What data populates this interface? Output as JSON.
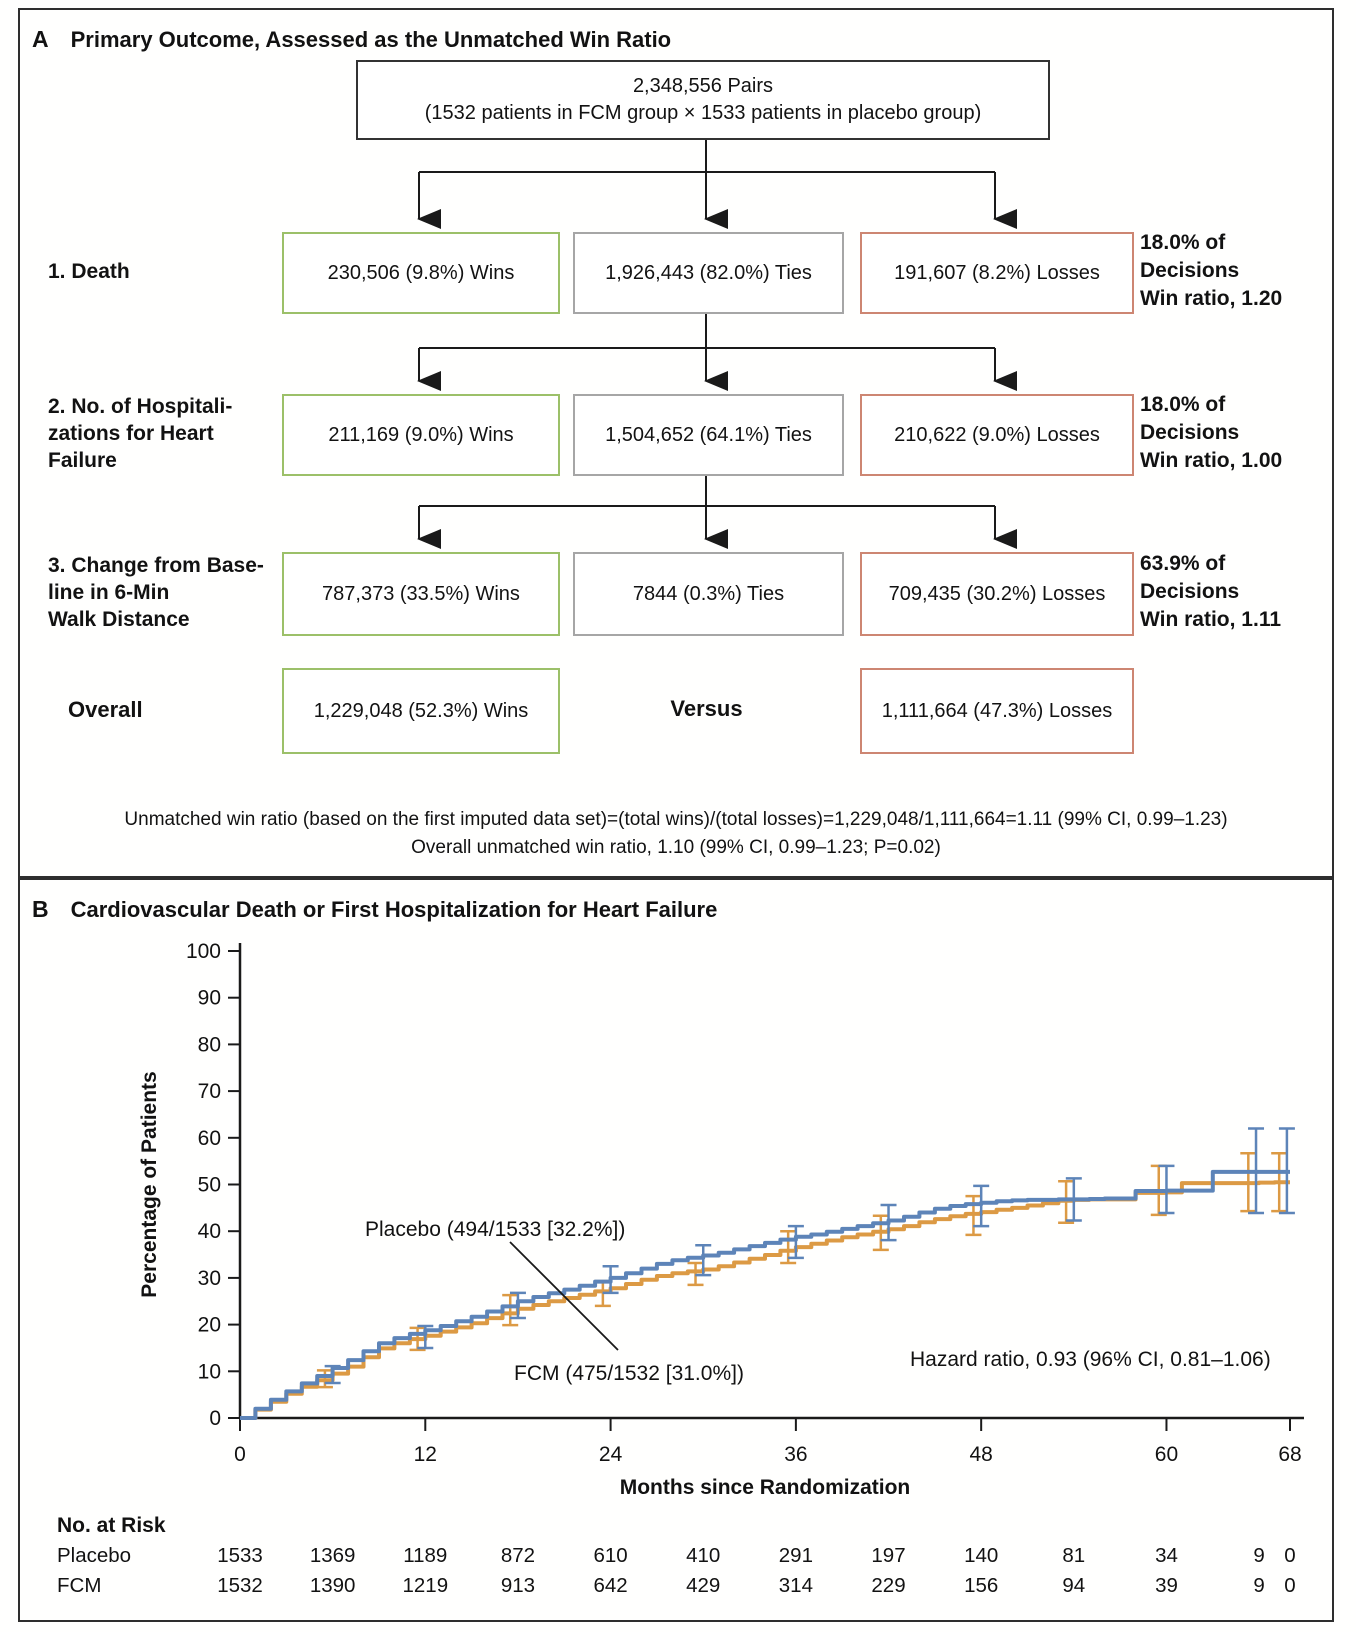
{
  "colors": {
    "wins_border": "#9cc069",
    "ties_border": "#a6a6a6",
    "losses_border": "#cd8672",
    "placebo_curve": "#5d84b8",
    "fcm_curve": "#dc9a44"
  },
  "panel_a": {
    "label": "A",
    "title": "Primary Outcome, Assessed as the Unmatched Win Ratio",
    "pairs_box": "2,348,556 Pairs\n(1532 patients in FCM group × 1533 patients in placebo group)",
    "rows": [
      {
        "label": "1. Death",
        "wins": "230,506 (9.8%) Wins",
        "ties": "1,926,443 (82.0%) Ties",
        "losses": "191,607 (8.2%) Losses",
        "note": "18.0% of Decisions\nWin ratio, 1.20"
      },
      {
        "label": "2. No. of Hospitali-\nzations for Heart\nFailure",
        "wins": "211,169 (9.0%) Wins",
        "ties": "1,504,652 (64.1%) Ties",
        "losses": "210,622 (9.0%) Losses",
        "note": "18.0% of Decisions\nWin ratio, 1.00"
      },
      {
        "label": "3. Change from Base-\nline in 6-Min\nWalk Distance",
        "wins": "787,373 (33.5%) Wins",
        "ties": "7844 (0.3%) Ties",
        "losses": "709,435 (30.2%) Losses",
        "note": "63.9% of Decisions\nWin ratio, 1.11"
      }
    ],
    "overall": {
      "label": "Overall",
      "wins": "1,229,048 (52.3%) Wins",
      "versus": "Versus",
      "losses": "1,111,664 (47.3%) Losses"
    },
    "footnote": "Unmatched win ratio (based on the first imputed data set)=(total wins)/(total losses)=1,229,048/1,111,664=1.11 (99% CI, 0.99–1.23)\nOverall unmatched win ratio, 1.10 (99% CI, 0.99–1.23; P=0.02)"
  },
  "panel_b": {
    "label": "B",
    "title": "Cardiovascular Death or First Hospitalization for Heart Failure"
  },
  "chart_data": {
    "type": "line",
    "subtype": "kaplan-meier-step",
    "title": "Cardiovascular Death or First Hospitalization for Heart Failure",
    "xlabel": "Months since Randomization",
    "ylabel": "Percentage of Patients",
    "xlim": [
      0,
      68
    ],
    "ylim": [
      0,
      100
    ],
    "xticks": [
      0,
      12,
      24,
      36,
      48,
      60,
      68
    ],
    "yticks": [
      0,
      10,
      20,
      30,
      40,
      50,
      60,
      70,
      80,
      90,
      100
    ],
    "annotation": "Hazard ratio, 0.93 (96% CI, 0.81–1.06)",
    "series": [
      {
        "name": "FCM",
        "label": "FCM (475/1532 [31.0%])",
        "color": "#dc9a44",
        "points": [
          [
            0,
            0
          ],
          [
            1,
            1.8
          ],
          [
            2,
            3.5
          ],
          [
            3,
            5.2
          ],
          [
            4,
            6.7
          ],
          [
            5,
            8.1
          ],
          [
            6,
            9.5
          ],
          [
            7,
            11.0
          ],
          [
            8,
            13.0
          ],
          [
            9,
            14.9
          ],
          [
            10,
            16.0
          ],
          [
            11,
            16.9
          ],
          [
            12,
            17.6
          ],
          [
            13,
            18.5
          ],
          [
            14,
            19.4
          ],
          [
            15,
            20.3
          ],
          [
            16,
            21.4
          ],
          [
            17,
            22.4
          ],
          [
            18,
            23.4
          ],
          [
            19,
            24.2
          ],
          [
            20,
            25.0
          ],
          [
            21,
            25.7
          ],
          [
            22,
            26.4
          ],
          [
            23,
            27.1
          ],
          [
            24,
            27.8
          ],
          [
            25,
            28.7
          ],
          [
            26,
            29.6
          ],
          [
            27,
            30.4
          ],
          [
            28,
            31.0
          ],
          [
            29,
            31.4
          ],
          [
            30,
            31.8
          ],
          [
            31,
            32.5
          ],
          [
            32,
            33.3
          ],
          [
            33,
            34.1
          ],
          [
            34,
            34.9
          ],
          [
            35,
            35.8
          ],
          [
            36,
            36.6
          ],
          [
            37,
            37.3
          ],
          [
            38,
            38.0
          ],
          [
            39,
            38.7
          ],
          [
            40,
            39.3
          ],
          [
            41,
            39.9
          ],
          [
            42,
            40.4
          ],
          [
            43,
            41.1
          ],
          [
            44,
            41.9
          ],
          [
            45,
            42.6
          ],
          [
            46,
            43.2
          ],
          [
            47,
            43.7
          ],
          [
            48,
            44.1
          ],
          [
            49,
            44.6
          ],
          [
            50,
            45.0
          ],
          [
            51,
            45.5
          ],
          [
            52,
            46.0
          ],
          [
            53,
            46.5
          ],
          [
            54,
            46.7
          ],
          [
            55,
            46.8
          ],
          [
            56,
            46.8
          ],
          [
            57,
            46.8
          ],
          [
            58,
            48.2
          ],
          [
            59,
            48.2
          ],
          [
            60,
            48.3
          ],
          [
            61,
            50.3
          ],
          [
            62,
            50.3
          ],
          [
            63,
            50.3
          ],
          [
            64,
            50.3
          ],
          [
            65,
            50.3
          ],
          [
            66,
            50.4
          ],
          [
            67,
            50.5
          ],
          [
            68,
            50.5
          ]
        ],
        "error_bars": [
          [
            5.5,
            6.6,
            10.2
          ],
          [
            11.5,
            14.6,
            19.3
          ],
          [
            17.5,
            19.9,
            26.3
          ],
          [
            23.5,
            24.0,
            29.3
          ],
          [
            29.5,
            28.5,
            33.2
          ],
          [
            35.5,
            33.2,
            40.0
          ],
          [
            41.5,
            36.0,
            43.3
          ],
          [
            47.5,
            39.2,
            47.5
          ],
          [
            53.5,
            41.8,
            50.7
          ],
          [
            59.5,
            43.5,
            54.0
          ],
          [
            65.3,
            44.3,
            56.7
          ],
          [
            67.3,
            44.3,
            56.7
          ]
        ]
      },
      {
        "name": "Placebo",
        "label": "Placebo (494/1533 [32.2%])",
        "color": "#5d84b8",
        "points": [
          [
            0,
            0
          ],
          [
            1,
            2.0
          ],
          [
            2,
            3.9
          ],
          [
            3,
            5.7
          ],
          [
            4,
            7.4
          ],
          [
            5,
            9.0
          ],
          [
            6,
            10.7
          ],
          [
            7,
            12.4
          ],
          [
            8,
            14.3
          ],
          [
            9,
            16.0
          ],
          [
            10,
            17.1
          ],
          [
            11,
            18.0
          ],
          [
            12,
            18.8
          ],
          [
            13,
            19.7
          ],
          [
            14,
            20.7
          ],
          [
            15,
            21.7
          ],
          [
            16,
            22.8
          ],
          [
            17,
            23.9
          ],
          [
            18,
            25.0
          ],
          [
            19,
            25.9
          ],
          [
            20,
            26.7
          ],
          [
            21,
            27.5
          ],
          [
            22,
            28.3
          ],
          [
            23,
            29.2
          ],
          [
            24,
            30.0
          ],
          [
            25,
            31.0
          ],
          [
            26,
            32.0
          ],
          [
            27,
            33.0
          ],
          [
            28,
            33.8
          ],
          [
            29,
            34.3
          ],
          [
            30,
            34.8
          ],
          [
            31,
            35.4
          ],
          [
            32,
            36.1
          ],
          [
            33,
            36.8
          ],
          [
            34,
            37.5
          ],
          [
            35,
            38.2
          ],
          [
            36,
            38.8
          ],
          [
            37,
            39.3
          ],
          [
            38,
            39.9
          ],
          [
            39,
            40.5
          ],
          [
            40,
            41.1
          ],
          [
            41,
            41.7
          ],
          [
            42,
            42.3
          ],
          [
            43,
            43.1
          ],
          [
            44,
            44.0
          ],
          [
            45,
            44.8
          ],
          [
            46,
            45.4
          ],
          [
            47,
            45.8
          ],
          [
            48,
            46.1
          ],
          [
            49,
            46.4
          ],
          [
            50,
            46.6
          ],
          [
            51,
            46.7
          ],
          [
            52,
            46.7
          ],
          [
            53,
            46.8
          ],
          [
            54,
            46.8
          ],
          [
            55,
            46.9
          ],
          [
            56,
            47.0
          ],
          [
            57,
            47.0
          ],
          [
            58,
            48.6
          ],
          [
            59,
            48.6
          ],
          [
            60,
            48.7
          ],
          [
            61,
            48.7
          ],
          [
            62,
            48.7
          ],
          [
            63,
            52.7
          ],
          [
            64,
            52.7
          ],
          [
            65,
            52.7
          ],
          [
            66,
            52.7
          ],
          [
            67,
            52.7
          ],
          [
            68,
            52.7
          ]
        ],
        "error_bars": [
          [
            6,
            7.5,
            11.1
          ],
          [
            12,
            15.0,
            19.7
          ],
          [
            18,
            21.4,
            26.8
          ],
          [
            24,
            26.8,
            32.5
          ],
          [
            30,
            30.6,
            37.0
          ],
          [
            36,
            34.3,
            41.1
          ],
          [
            42,
            38.1,
            45.6
          ],
          [
            48,
            41.1,
            49.7
          ],
          [
            54,
            42.3,
            51.3
          ],
          [
            60,
            43.9,
            54.0
          ],
          [
            65.8,
            43.9,
            62.0
          ],
          [
            67.8,
            43.9,
            62.0
          ]
        ]
      }
    ],
    "risk_table": {
      "title": "No. at Risk",
      "months": [
        0,
        6,
        12,
        18,
        24,
        30,
        36,
        42,
        48,
        54,
        60,
        66,
        68
      ],
      "rows": [
        {
          "label": "Placebo",
          "values": [
            1533,
            1369,
            1189,
            872,
            610,
            410,
            291,
            197,
            140,
            81,
            34,
            9,
            0
          ]
        },
        {
          "label": "FCM",
          "values": [
            1532,
            1390,
            1219,
            913,
            642,
            429,
            314,
            229,
            156,
            94,
            39,
            9,
            0
          ]
        }
      ]
    }
  }
}
